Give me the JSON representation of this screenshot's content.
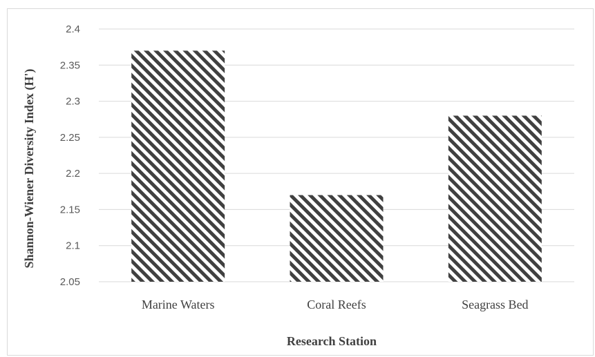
{
  "chart_data": {
    "type": "bar",
    "categories": [
      "Marine Waters",
      "Coral Reefs",
      "Seagrass Bed"
    ],
    "values": [
      2.37,
      2.17,
      2.28
    ],
    "title": "",
    "xlabel": "Research Station",
    "ylabel": "Shannon-Wiener Diversity Index (H')",
    "ylim": [
      2.05,
      2.4
    ],
    "yticks": [
      "2.05",
      "2.1",
      "2.15",
      "2.2",
      "2.25",
      "2.3",
      "2.35",
      "2.4"
    ],
    "grid": true,
    "legend": "none",
    "colors": {
      "bar_stripe": "#404040",
      "bar_background": "#ffffff",
      "gridline": "#d9d9d9",
      "text": "#595959"
    }
  }
}
